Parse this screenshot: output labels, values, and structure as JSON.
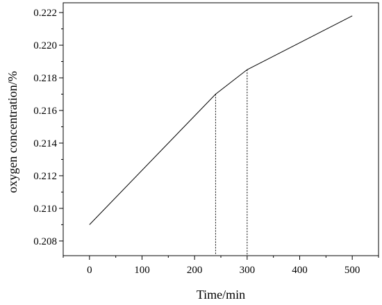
{
  "chart_data": {
    "type": "line",
    "title": "",
    "xlabel": "Time/min",
    "ylabel": "oxygen concentration/%",
    "xlim": [
      -50,
      550
    ],
    "ylim": [
      0.2071,
      0.2226
    ],
    "x_ticks": [
      0,
      100,
      200,
      300,
      400,
      500
    ],
    "y_ticks": [
      0.208,
      0.21,
      0.212,
      0.214,
      0.216,
      0.218,
      0.22,
      0.222
    ],
    "grid": false,
    "legend": "none",
    "series": [
      {
        "x": [
          0,
          240,
          300,
          500
        ],
        "y": [
          0.209,
          0.217,
          0.2185,
          0.2218
        ]
      }
    ],
    "guides": [
      {
        "x": 240,
        "y": 0.217
      },
      {
        "x": 300,
        "y": 0.2185
      }
    ]
  }
}
